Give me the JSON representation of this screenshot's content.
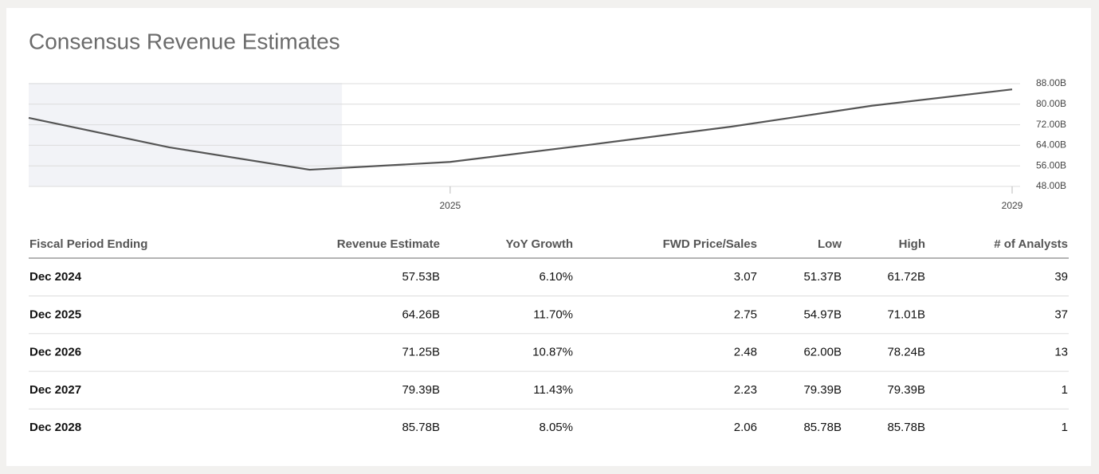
{
  "title": "Consensus Revenue Estimates",
  "chart_data": {
    "type": "line",
    "x": [
      2022,
      2023,
      2024,
      2025,
      2026,
      2027,
      2028,
      2029
    ],
    "values": [
      74.7,
      63.2,
      54.5,
      57.53,
      64.26,
      71.25,
      79.39,
      85.78
    ],
    "color": "#555555",
    "xlim": [
      2022,
      2029
    ],
    "xticks": [
      2025,
      2029
    ],
    "ylim": [
      48,
      88
    ],
    "yticks": [
      {
        "value": 48,
        "label": "48.00B"
      },
      {
        "value": 56,
        "label": "56.00B"
      },
      {
        "value": 64,
        "label": "64.00B"
      },
      {
        "value": 72,
        "label": "72.00B"
      },
      {
        "value": 80,
        "label": "80.00B"
      },
      {
        "value": 88,
        "label": "88.00B"
      }
    ],
    "grid": true,
    "shaded_xrange": [
      2022,
      2024.23
    ]
  },
  "table": {
    "columns": [
      "Fiscal Period Ending",
      "Revenue Estimate",
      "YoY Growth",
      "FWD Price/Sales",
      "Low",
      "High",
      "# of Analysts"
    ],
    "rows": [
      [
        "Dec 2024",
        "57.53B",
        "6.10%",
        "3.07",
        "51.37B",
        "61.72B",
        "39"
      ],
      [
        "Dec 2025",
        "64.26B",
        "11.70%",
        "2.75",
        "54.97B",
        "71.01B",
        "37"
      ],
      [
        "Dec 2026",
        "71.25B",
        "10.87%",
        "2.48",
        "62.00B",
        "78.24B",
        "13"
      ],
      [
        "Dec 2027",
        "79.39B",
        "11.43%",
        "2.23",
        "79.39B",
        "79.39B",
        "1"
      ],
      [
        "Dec 2028",
        "85.78B",
        "8.05%",
        "2.06",
        "85.78B",
        "85.78B",
        "1"
      ]
    ]
  }
}
